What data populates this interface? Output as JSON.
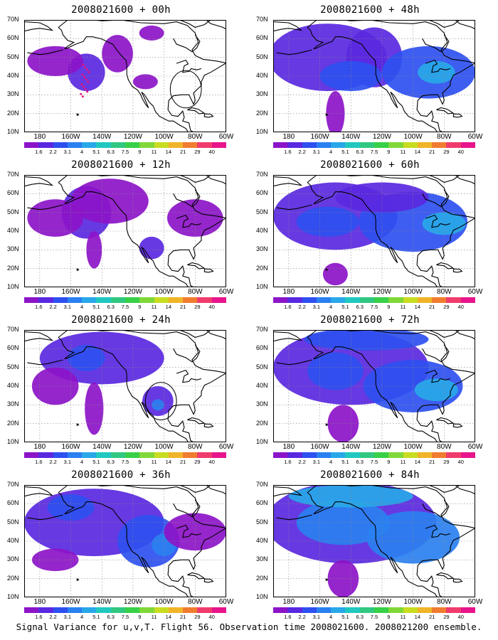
{
  "figure": {
    "caption": "Signal Variance for u,v,T. Flight 56. Observation time 2008021600. 2008021200 ensemble.",
    "lat_ticks": [
      "70N",
      "60N",
      "50N",
      "40N",
      "30N",
      "20N",
      "10N"
    ],
    "lon_ticks": [
      "180",
      "160W",
      "140W",
      "120W",
      "100W",
      "80W",
      "60W"
    ],
    "colorbar_levels": [
      "1.6",
      "2.2",
      "3.1",
      "4",
      "5.1",
      "6.3",
      "7.5",
      "9",
      "11",
      "14",
      "21",
      "29",
      "40"
    ],
    "colorbar_colors": [
      "#8c14c8",
      "#5a28e0",
      "#2e50f0",
      "#2a80f0",
      "#28a8e8",
      "#20c8c0",
      "#30c880",
      "#38d048",
      "#80d838",
      "#c8dc20",
      "#f0b428",
      "#f07c30",
      "#f03c6c",
      "#e8148c"
    ],
    "extent": {
      "lon_min": -190,
      "lon_max": -60,
      "lat_min": 10,
      "lat_max": 70
    }
  },
  "panels": [
    {
      "id": "p00",
      "title": "2008021600 + 00h",
      "blobs": [
        {
          "lon": -150,
          "lat": 42,
          "rx": 12,
          "ry": 10,
          "level": 1
        },
        {
          "lon": -170,
          "lat": 48,
          "rx": 18,
          "ry": 8,
          "level": 0
        },
        {
          "lon": -130,
          "lat": 52,
          "rx": 10,
          "ry": 10,
          "level": 0
        },
        {
          "lon": -112,
          "lat": 37,
          "rx": 8,
          "ry": 4,
          "level": 0
        },
        {
          "lon": -108,
          "lat": 63,
          "rx": 8,
          "ry": 4,
          "level": 0
        }
      ],
      "circle": {
        "lon": -86,
        "lat": 33,
        "r": 10
      },
      "track": true
    },
    {
      "id": "p48",
      "title": "2008021600 + 48h",
      "blobs": [
        {
          "lon": -155,
          "lat": 50,
          "rx": 38,
          "ry": 18,
          "level": 1
        },
        {
          "lon": -125,
          "lat": 50,
          "rx": 18,
          "ry": 16,
          "level": 1
        },
        {
          "lon": -90,
          "lat": 42,
          "rx": 30,
          "ry": 14,
          "level": 2
        },
        {
          "lon": -85,
          "lat": 42,
          "rx": 12,
          "ry": 6,
          "level": 4
        },
        {
          "lon": -140,
          "lat": 40,
          "rx": 20,
          "ry": 8,
          "level": 2
        },
        {
          "lon": -150,
          "lat": 20,
          "rx": 6,
          "ry": 12,
          "level": 0
        }
      ]
    },
    {
      "id": "p12",
      "title": "2008021600 + 12h",
      "blobs": [
        {
          "lon": -150,
          "lat": 50,
          "rx": 16,
          "ry": 14,
          "level": 1
        },
        {
          "lon": -135,
          "lat": 56,
          "rx": 25,
          "ry": 12,
          "level": 0
        },
        {
          "lon": -170,
          "lat": 47,
          "rx": 18,
          "ry": 10,
          "level": 0
        },
        {
          "lon": -108,
          "lat": 31,
          "rx": 8,
          "ry": 6,
          "level": 1
        },
        {
          "lon": -145,
          "lat": 30,
          "rx": 5,
          "ry": 10,
          "level": 0
        },
        {
          "lon": -80,
          "lat": 47,
          "rx": 18,
          "ry": 10,
          "level": 0
        }
      ]
    },
    {
      "id": "p60",
      "title": "2008021600 + 60h",
      "blobs": [
        {
          "lon": -150,
          "lat": 48,
          "rx": 40,
          "ry": 18,
          "level": 1
        },
        {
          "lon": -155,
          "lat": 45,
          "rx": 20,
          "ry": 8,
          "level": 2
        },
        {
          "lon": -100,
          "lat": 45,
          "rx": 35,
          "ry": 16,
          "level": 2
        },
        {
          "lon": -80,
          "lat": 44,
          "rx": 14,
          "ry": 6,
          "level": 4
        },
        {
          "lon": -120,
          "lat": 58,
          "rx": 30,
          "ry": 8,
          "level": 1
        },
        {
          "lon": -150,
          "lat": 17,
          "rx": 8,
          "ry": 6,
          "level": 0
        }
      ]
    },
    {
      "id": "p24",
      "title": "2008021600 + 24h",
      "blobs": [
        {
          "lon": -140,
          "lat": 55,
          "rx": 40,
          "ry": 14,
          "level": 1
        },
        {
          "lon": -150,
          "lat": 55,
          "rx": 12,
          "ry": 7,
          "level": 2
        },
        {
          "lon": -104,
          "lat": 32,
          "rx": 10,
          "ry": 8,
          "level": 1
        },
        {
          "lon": -104,
          "lat": 30,
          "rx": 4,
          "ry": 3,
          "level": 3
        },
        {
          "lon": -170,
          "lat": 40,
          "rx": 15,
          "ry": 10,
          "level": 0
        },
        {
          "lon": -145,
          "lat": 28,
          "rx": 6,
          "ry": 14,
          "level": 0
        }
      ],
      "circle": {
        "lon": -102,
        "lat": 32,
        "r": 10
      }
    },
    {
      "id": "p72",
      "title": "2008021600 + 72h",
      "blobs": [
        {
          "lon": -140,
          "lat": 50,
          "rx": 50,
          "ry": 20,
          "level": 1
        },
        {
          "lon": -150,
          "lat": 48,
          "rx": 18,
          "ry": 10,
          "level": 2
        },
        {
          "lon": -100,
          "lat": 40,
          "rx": 32,
          "ry": 14,
          "level": 2
        },
        {
          "lon": -85,
          "lat": 38,
          "rx": 14,
          "ry": 6,
          "level": 4
        },
        {
          "lon": -130,
          "lat": 65,
          "rx": 40,
          "ry": 6,
          "level": 2
        },
        {
          "lon": -145,
          "lat": 20,
          "rx": 10,
          "ry": 10,
          "level": 0
        }
      ]
    },
    {
      "id": "p36",
      "title": "2008021600 + 36h",
      "blobs": [
        {
          "lon": -145,
          "lat": 50,
          "rx": 45,
          "ry": 18,
          "level": 1
        },
        {
          "lon": -160,
          "lat": 58,
          "rx": 15,
          "ry": 7,
          "level": 2
        },
        {
          "lon": -110,
          "lat": 40,
          "rx": 20,
          "ry": 14,
          "level": 2
        },
        {
          "lon": -100,
          "lat": 38,
          "rx": 8,
          "ry": 6,
          "level": 3
        },
        {
          "lon": -170,
          "lat": 30,
          "rx": 15,
          "ry": 6,
          "level": 0
        },
        {
          "lon": -80,
          "lat": 45,
          "rx": 20,
          "ry": 10,
          "level": 0
        }
      ]
    },
    {
      "id": "p84",
      "title": "2008021600 + 84h",
      "blobs": [
        {
          "lon": -140,
          "lat": 50,
          "rx": 55,
          "ry": 22,
          "level": 1
        },
        {
          "lon": -145,
          "lat": 50,
          "rx": 30,
          "ry": 12,
          "level": 3
        },
        {
          "lon": -100,
          "lat": 42,
          "rx": 30,
          "ry": 14,
          "level": 3
        },
        {
          "lon": -140,
          "lat": 64,
          "rx": 40,
          "ry": 6,
          "level": 4
        },
        {
          "lon": -145,
          "lat": 20,
          "rx": 10,
          "ry": 10,
          "level": 0
        }
      ]
    }
  ]
}
